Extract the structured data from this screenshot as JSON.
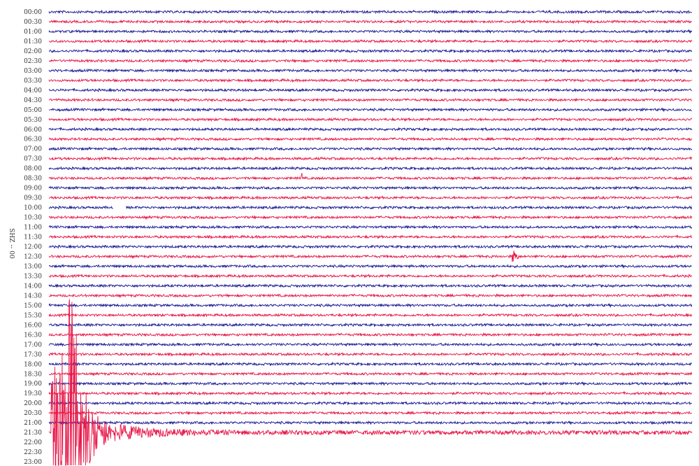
{
  "chart_data": {
    "type": "line",
    "subtype": "helicorder",
    "channel_label": "SHZ -- 00",
    "row_minutes": 30,
    "row_labels": [
      "00:00",
      "00:30",
      "01:00",
      "01:30",
      "02:00",
      "02:30",
      "03:00",
      "03:30",
      "04:00",
      "04:30",
      "05:00",
      "05:30",
      "06:00",
      "06:30",
      "07:00",
      "07:30",
      "08:00",
      "08:30",
      "09:00",
      "09:30",
      "10:00",
      "10:30",
      "11:00",
      "11:30",
      "12:00",
      "12:30",
      "13:00",
      "13:30",
      "14:00",
      "14:30",
      "15:00",
      "15:30",
      "16:00",
      "16:30",
      "17:00",
      "17:30",
      "18:00",
      "18:30",
      "19:00",
      "19:30",
      "20:00",
      "20:30",
      "21:00",
      "21:30",
      "22:00",
      "22:30",
      "23:00"
    ],
    "rows_with_trace": 44,
    "colors": [
      "#1c1c96",
      "#e8194a"
    ],
    "events": [
      {
        "row": "08:30",
        "minute_in_row": 11.8,
        "amplitude": "small"
      },
      {
        "row": "12:30",
        "minute_in_row": 21.7,
        "amplitude": "moderate"
      },
      {
        "row": "21:30",
        "minute_in_row": 0.1,
        "amplitude": "large",
        "duration_minutes": 5.5
      }
    ],
    "gaps": [
      {
        "row": "10:00",
        "minute_from": 3.0,
        "minute_to": 3.6
      }
    ],
    "grid": false
  }
}
